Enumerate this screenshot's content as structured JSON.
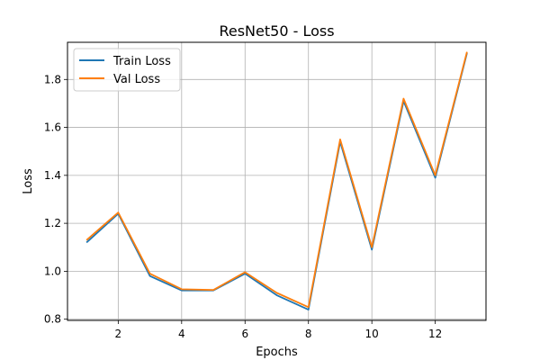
{
  "chart_data": {
    "type": "line",
    "title": "ResNet50 - Loss",
    "xlabel": "Epochs",
    "ylabel": "Loss",
    "x": [
      1,
      2,
      3,
      4,
      5,
      6,
      7,
      8,
      9,
      10,
      11,
      12,
      13
    ],
    "xlim": [
      0.4,
      13.6
    ],
    "ylim": [
      0.795,
      1.955
    ],
    "xticks": [
      2,
      4,
      6,
      8,
      10,
      12
    ],
    "yticks": [
      0.8,
      1.0,
      1.2,
      1.4,
      1.6,
      1.8
    ],
    "ytick_labels": [
      "0.8",
      "1.0",
      "1.2",
      "1.4",
      "1.6",
      "1.8"
    ],
    "grid": true,
    "legend_position": "top-left",
    "series": [
      {
        "name": "Train Loss",
        "color": "#1f77b4",
        "values": [
          1.12,
          1.24,
          0.98,
          0.92,
          0.92,
          0.99,
          0.9,
          0.84,
          1.54,
          1.09,
          1.71,
          1.39,
          1.91
        ]
      },
      {
        "name": "Val Loss",
        "color": "#ff7f0e",
        "values": [
          1.13,
          1.245,
          0.99,
          0.925,
          0.922,
          0.996,
          0.91,
          0.85,
          1.55,
          1.1,
          1.72,
          1.4,
          1.915
        ]
      }
    ]
  }
}
